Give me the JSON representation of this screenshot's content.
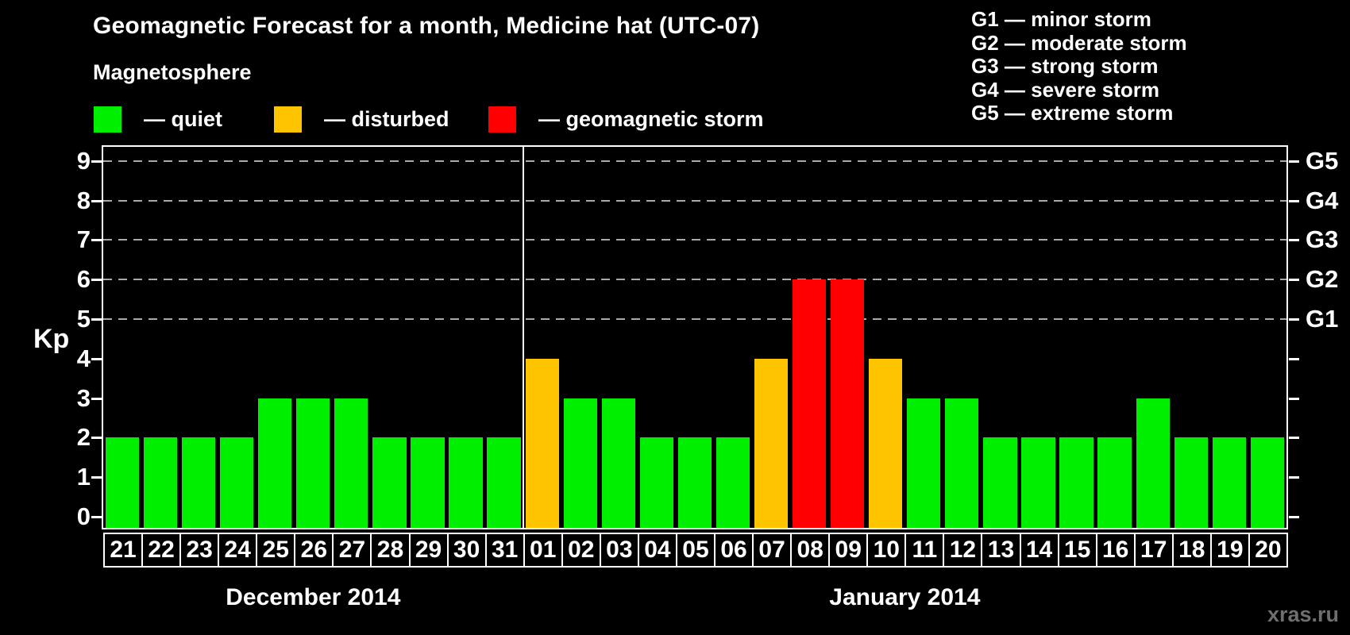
{
  "title": "Geomagnetic Forecast for a month, Medicine hat (UTC-07)",
  "magnetosphere_legend": {
    "heading": "Magnetosphere",
    "items": [
      {
        "key": "quiet",
        "label": "— quiet",
        "color": "#00ef00"
      },
      {
        "key": "disturbed",
        "label": "— disturbed",
        "color": "#ffc400"
      },
      {
        "key": "storm",
        "label": "— geomagnetic storm",
        "color": "#ff0000"
      }
    ]
  },
  "storm_scale_legend": {
    "items": [
      "G1 — minor storm",
      "G2 — moderate storm",
      "G3 — strong storm",
      "G4 — severe storm",
      "G5 — extreme storm"
    ]
  },
  "watermark": "xras.ru",
  "chart_data": {
    "type": "bar",
    "title": "Geomagnetic Forecast for a month, Medicine hat (UTC-07)",
    "xlabel": "",
    "ylabel": "Kp",
    "ylim": [
      0,
      9.3
    ],
    "yticks": [
      0,
      1,
      2,
      3,
      4,
      5,
      6,
      7,
      8,
      9
    ],
    "grid": "dashed-horizontal",
    "gridlines_at_kp": [
      5,
      6,
      7,
      8,
      9
    ],
    "legend_position": "top-left",
    "right_axis": [
      {
        "kp": 5,
        "label": "G1"
      },
      {
        "kp": 6,
        "label": "G2"
      },
      {
        "kp": 7,
        "label": "G3"
      },
      {
        "kp": 8,
        "label": "G4"
      },
      {
        "kp": 9,
        "label": "G5"
      }
    ],
    "status_colors": {
      "quiet": "#00ef00",
      "disturbed": "#ffc400",
      "storm": "#ff0000"
    },
    "months": [
      {
        "label": "December 2014",
        "days": [
          {
            "day": "21",
            "kp": 2,
            "status": "quiet"
          },
          {
            "day": "22",
            "kp": 2,
            "status": "quiet"
          },
          {
            "day": "23",
            "kp": 2,
            "status": "quiet"
          },
          {
            "day": "24",
            "kp": 2,
            "status": "quiet"
          },
          {
            "day": "25",
            "kp": 3,
            "status": "quiet"
          },
          {
            "day": "26",
            "kp": 3,
            "status": "quiet"
          },
          {
            "day": "27",
            "kp": 3,
            "status": "quiet"
          },
          {
            "day": "28",
            "kp": 2,
            "status": "quiet"
          },
          {
            "day": "29",
            "kp": 2,
            "status": "quiet"
          },
          {
            "day": "30",
            "kp": 2,
            "status": "quiet"
          },
          {
            "day": "31",
            "kp": 2,
            "status": "quiet"
          }
        ]
      },
      {
        "label": "January 2014",
        "days": [
          {
            "day": "01",
            "kp": 4,
            "status": "disturbed"
          },
          {
            "day": "02",
            "kp": 3,
            "status": "quiet"
          },
          {
            "day": "03",
            "kp": 3,
            "status": "quiet"
          },
          {
            "day": "04",
            "kp": 2,
            "status": "quiet"
          },
          {
            "day": "05",
            "kp": 2,
            "status": "quiet"
          },
          {
            "day": "06",
            "kp": 2,
            "status": "quiet"
          },
          {
            "day": "07",
            "kp": 4,
            "status": "disturbed"
          },
          {
            "day": "08",
            "kp": 6,
            "status": "storm"
          },
          {
            "day": "09",
            "kp": 6,
            "status": "storm"
          },
          {
            "day": "10",
            "kp": 4,
            "status": "disturbed"
          },
          {
            "day": "11",
            "kp": 3,
            "status": "quiet"
          },
          {
            "day": "12",
            "kp": 3,
            "status": "quiet"
          },
          {
            "day": "13",
            "kp": 2,
            "status": "quiet"
          },
          {
            "day": "14",
            "kp": 2,
            "status": "quiet"
          },
          {
            "day": "15",
            "kp": 2,
            "status": "quiet"
          },
          {
            "day": "16",
            "kp": 2,
            "status": "quiet"
          },
          {
            "day": "17",
            "kp": 3,
            "status": "quiet"
          },
          {
            "day": "18",
            "kp": 2,
            "status": "quiet"
          },
          {
            "day": "19",
            "kp": 2,
            "status": "quiet"
          },
          {
            "day": "20",
            "kp": 2,
            "status": "quiet"
          }
        ]
      }
    ]
  }
}
